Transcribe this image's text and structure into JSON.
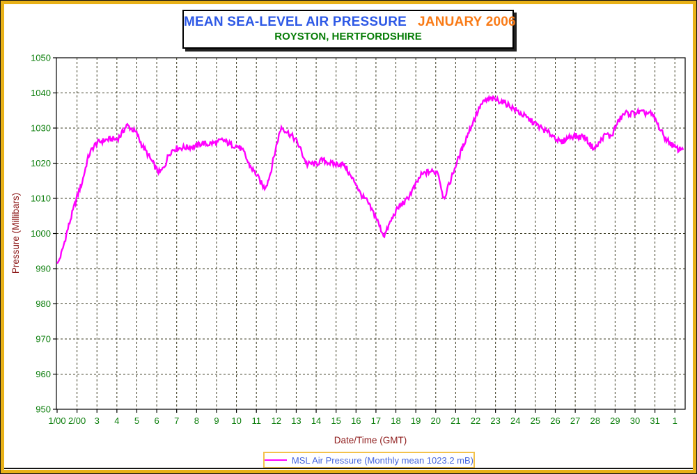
{
  "title_box": {
    "line1_left": "MEAN SEA-LEVEL AIR PRESSURE",
    "line1_right": "JANUARY 2006",
    "line2": "ROYSTON, HERTFORDSHIRE"
  },
  "colors": {
    "frame_gold": "#E8B118",
    "legend_gold": "#F3C24B",
    "title_blue": "#2E59E6",
    "title_orange": "#F97B17",
    "title_green": "#077D07",
    "tick_green": "#0A7D0A",
    "axis_title_darkred": "#8E1B1B",
    "legend_blue": "#4365DF",
    "series_magenta": "#FF00FF",
    "grid": "#3B3B23",
    "axis_black": "#000000"
  },
  "chart_data": {
    "type": "line",
    "title": "MEAN SEA-LEVEL AIR PRESSURE JANUARY 2006",
    "subtitle": "ROYSTON, HERTFORDSHIRE",
    "xlabel": "Date/Time (GMT)",
    "ylabel": "Pressure (Millibars)",
    "ylim": [
      950,
      1050
    ],
    "xlim_days": [
      1,
      32.5
    ],
    "y_ticks": [
      950,
      960,
      970,
      980,
      990,
      1000,
      1010,
      1020,
      1030,
      1040,
      1050
    ],
    "x_tick_days": [
      1,
      2,
      3,
      4,
      5,
      6,
      7,
      8,
      9,
      10,
      11,
      12,
      13,
      14,
      15,
      16,
      17,
      18,
      19,
      20,
      21,
      22,
      23,
      24,
      25,
      26,
      27,
      28,
      29,
      30,
      31,
      32
    ],
    "x_tick_labels": [
      "1/00",
      "2/00",
      "3",
      "4",
      "5",
      "6",
      "7",
      "8",
      "9",
      "10",
      "11",
      "12",
      "13",
      "14",
      "15",
      "16",
      "17",
      "18",
      "19",
      "20",
      "21",
      "22",
      "23",
      "24",
      "25",
      "26",
      "27",
      "28",
      "29",
      "30",
      "31",
      "1"
    ],
    "grid": "dashed, both axes, daily vertical and 10 mB horizontal",
    "legend": {
      "position": "bottom-center",
      "label": "MSL Air Pressure (Monthly mean 1023.2 mB)"
    },
    "monthly_mean_mb": 1023.2,
    "noise_amplitude_mb": 0.85,
    "series": [
      {
        "name": "MSL Air Pressure",
        "color": "#FF00FF",
        "points_day_mb": [
          [
            1.0,
            992.0
          ],
          [
            1.05,
            991.3
          ],
          [
            1.1,
            992.5
          ],
          [
            1.2,
            994.0
          ],
          [
            1.3,
            996.0
          ],
          [
            1.4,
            998.2
          ],
          [
            1.5,
            1000.5
          ],
          [
            1.6,
            1002.5
          ],
          [
            1.7,
            1004.5
          ],
          [
            1.8,
            1006.5
          ],
          [
            1.9,
            1008.5
          ],
          [
            2.0,
            1010.3
          ],
          [
            2.1,
            1012.2
          ],
          [
            2.25,
            1014.5
          ],
          [
            2.4,
            1018.0
          ],
          [
            2.5,
            1020.5
          ],
          [
            2.6,
            1022.3
          ],
          [
            2.75,
            1024.0
          ],
          [
            2.9,
            1025.2
          ],
          [
            3.0,
            1025.8
          ],
          [
            3.25,
            1026.3
          ],
          [
            3.5,
            1026.7
          ],
          [
            3.75,
            1026.9
          ],
          [
            4.0,
            1026.8
          ],
          [
            4.2,
            1028.0
          ],
          [
            4.35,
            1029.5
          ],
          [
            4.5,
            1030.8
          ],
          [
            4.65,
            1030.2
          ],
          [
            4.8,
            1029.5
          ],
          [
            5.0,
            1028.4
          ],
          [
            5.25,
            1025.2
          ],
          [
            5.5,
            1023.0
          ],
          [
            5.75,
            1020.6
          ],
          [
            6.0,
            1018.2
          ],
          [
            6.15,
            1017.3
          ],
          [
            6.3,
            1018.3
          ],
          [
            6.45,
            1020.0
          ],
          [
            6.6,
            1022.6
          ],
          [
            6.8,
            1023.8
          ],
          [
            7.0,
            1024.3
          ],
          [
            7.5,
            1024.5
          ],
          [
            8.0,
            1024.9
          ],
          [
            8.3,
            1025.8
          ],
          [
            8.5,
            1025.3
          ],
          [
            8.75,
            1025.7
          ],
          [
            9.0,
            1025.8
          ],
          [
            9.3,
            1026.6
          ],
          [
            9.5,
            1026.0
          ],
          [
            9.75,
            1025.2
          ],
          [
            10.0,
            1025.0
          ],
          [
            10.2,
            1024.2
          ],
          [
            10.4,
            1022.8
          ],
          [
            10.6,
            1019.9
          ],
          [
            10.8,
            1018.3
          ],
          [
            11.0,
            1016.8
          ],
          [
            11.2,
            1014.7
          ],
          [
            11.4,
            1012.9
          ],
          [
            11.55,
            1014.5
          ],
          [
            11.7,
            1017.0
          ],
          [
            11.85,
            1021.0
          ],
          [
            12.0,
            1024.8
          ],
          [
            12.1,
            1027.2
          ],
          [
            12.25,
            1030.3
          ],
          [
            12.4,
            1029.6
          ],
          [
            12.6,
            1028.6
          ],
          [
            12.8,
            1027.6
          ],
          [
            13.0,
            1026.4
          ],
          [
            13.2,
            1024.2
          ],
          [
            13.4,
            1021.3
          ],
          [
            13.55,
            1019.6
          ],
          [
            13.75,
            1019.9
          ],
          [
            14.0,
            1019.7
          ],
          [
            14.3,
            1020.9
          ],
          [
            14.6,
            1020.3
          ],
          [
            14.8,
            1019.8
          ],
          [
            15.0,
            1019.7
          ],
          [
            15.3,
            1019.8
          ],
          [
            15.5,
            1018.8
          ],
          [
            15.75,
            1016.0
          ],
          [
            16.0,
            1014.3
          ],
          [
            16.2,
            1011.5
          ],
          [
            16.4,
            1010.0
          ],
          [
            16.55,
            1009.3
          ],
          [
            16.7,
            1007.5
          ],
          [
            17.0,
            1004.7
          ],
          [
            17.2,
            1001.8
          ],
          [
            17.4,
            999.4
          ],
          [
            17.55,
            1000.8
          ],
          [
            17.7,
            1003.0
          ],
          [
            18.0,
            1006.3
          ],
          [
            18.25,
            1008.2
          ],
          [
            18.5,
            1009.2
          ],
          [
            18.75,
            1011.5
          ],
          [
            19.0,
            1013.9
          ],
          [
            19.25,
            1016.5
          ],
          [
            19.5,
            1017.3
          ],
          [
            19.75,
            1017.7
          ],
          [
            20.0,
            1017.4
          ],
          [
            20.1,
            1017.9
          ],
          [
            20.25,
            1013.8
          ],
          [
            20.4,
            1010.0
          ],
          [
            20.55,
            1012.0
          ],
          [
            20.7,
            1014.4
          ],
          [
            20.85,
            1016.9
          ],
          [
            21.0,
            1019.4
          ],
          [
            21.25,
            1023.0
          ],
          [
            21.5,
            1026.8
          ],
          [
            21.75,
            1030.2
          ],
          [
            22.0,
            1033.4
          ],
          [
            22.25,
            1036.4
          ],
          [
            22.5,
            1037.8
          ],
          [
            22.75,
            1038.3
          ],
          [
            23.0,
            1038.1
          ],
          [
            23.25,
            1037.7
          ],
          [
            23.5,
            1037.1
          ],
          [
            23.75,
            1036.2
          ],
          [
            24.0,
            1035.2
          ],
          [
            24.5,
            1033.2
          ],
          [
            25.0,
            1031.2
          ],
          [
            25.5,
            1029.2
          ],
          [
            26.0,
            1027.4
          ],
          [
            26.2,
            1026.1
          ],
          [
            26.35,
            1025.8
          ],
          [
            26.5,
            1026.9
          ],
          [
            26.75,
            1027.6
          ],
          [
            27.0,
            1027.8
          ],
          [
            27.2,
            1027.4
          ],
          [
            27.4,
            1027.8
          ],
          [
            27.6,
            1026.6
          ],
          [
            27.8,
            1024.9
          ],
          [
            28.0,
            1024.2
          ],
          [
            28.2,
            1025.7
          ],
          [
            28.4,
            1027.5
          ],
          [
            28.6,
            1028.3
          ],
          [
            28.75,
            1027.4
          ],
          [
            28.9,
            1028.6
          ],
          [
            29.0,
            1030.2
          ],
          [
            29.25,
            1032.6
          ],
          [
            29.5,
            1034.3
          ],
          [
            29.75,
            1034.1
          ],
          [
            30.0,
            1034.3
          ],
          [
            30.25,
            1034.5
          ],
          [
            30.5,
            1034.2
          ],
          [
            30.75,
            1034.3
          ],
          [
            31.0,
            1032.6
          ],
          [
            31.25,
            1029.7
          ],
          [
            31.5,
            1027.3
          ],
          [
            31.75,
            1025.8
          ],
          [
            32.0,
            1024.4
          ],
          [
            32.2,
            1023.9
          ],
          [
            32.4,
            1024.4
          ]
        ]
      }
    ]
  }
}
